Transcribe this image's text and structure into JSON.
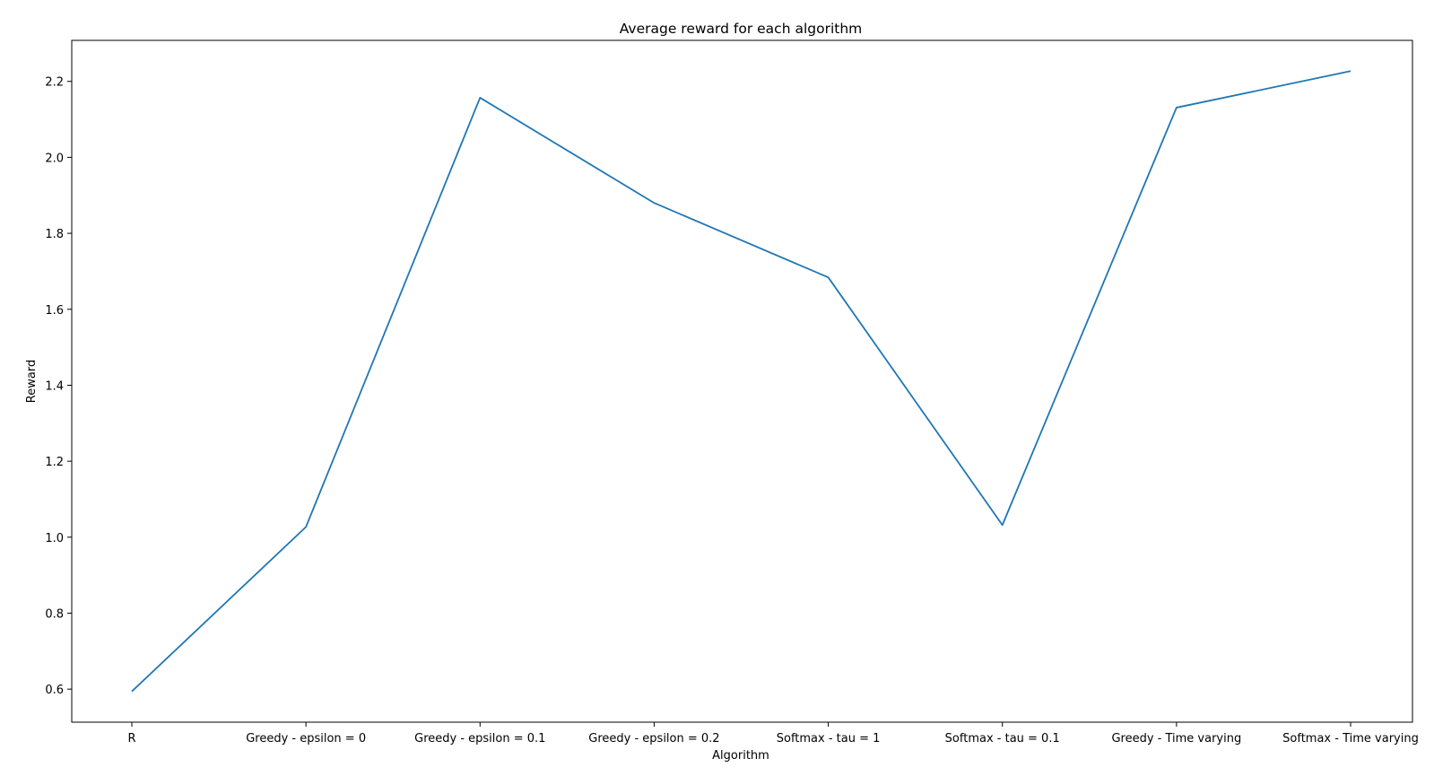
{
  "chart_data": {
    "type": "line",
    "title": "Average reward for each algorithm",
    "xlabel": "Algorithm",
    "ylabel": "Reward",
    "categories": [
      "R",
      "Greedy - epsilon = 0",
      "Greedy - epsilon = 0.1",
      "Greedy - epsilon = 0.2",
      "Softmax - tau = 1",
      "Softmax - tau = 0.1",
      "Greedy - Time varying",
      "Softmax - Time varying"
    ],
    "series": [
      {
        "values": [
          0.594,
          1.027,
          2.157,
          1.88,
          1.684,
          1.032,
          2.131,
          2.227
        ],
        "color": "#1f77b4"
      }
    ],
    "ylim": [
      0.513,
      2.308
    ],
    "yticks": [
      "0.6",
      "0.8",
      "1.0",
      "1.2",
      "1.4",
      "1.6",
      "1.8",
      "2.0",
      "2.2"
    ],
    "grid": false,
    "legend": "none"
  }
}
